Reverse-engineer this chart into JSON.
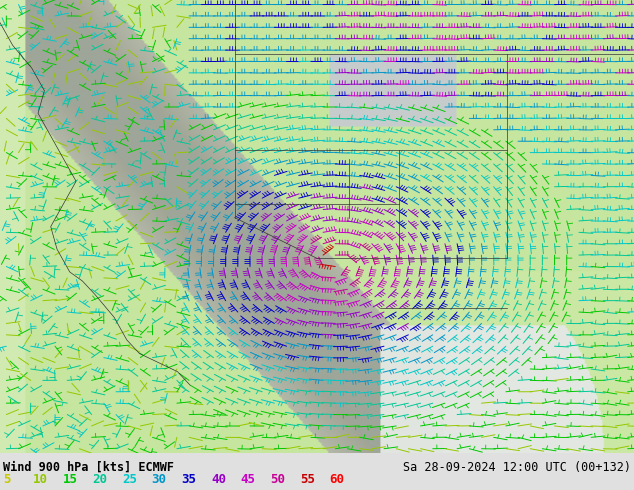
{
  "title_left": "Wind 900 hPa [kts] ECMWF",
  "title_right": "Sa 28-09-2024 12:00 UTC (00+132)",
  "legend_values": [
    "5",
    "10",
    "15",
    "20",
    "25",
    "30",
    "35",
    "40",
    "45",
    "50",
    "55",
    "60"
  ],
  "legend_colors": [
    "#c8c800",
    "#96c800",
    "#00c800",
    "#00c896",
    "#00c8c8",
    "#0096c8",
    "#0000c8",
    "#9600c8",
    "#c800c8",
    "#c80096",
    "#c80000",
    "#ff0000"
  ],
  "bg_color": "#e8e8e8",
  "fig_bg": "#e0e0e0",
  "font_size_title": 8.5,
  "font_size_legend_label": 8.5,
  "font_size_legend_nums": 9
}
